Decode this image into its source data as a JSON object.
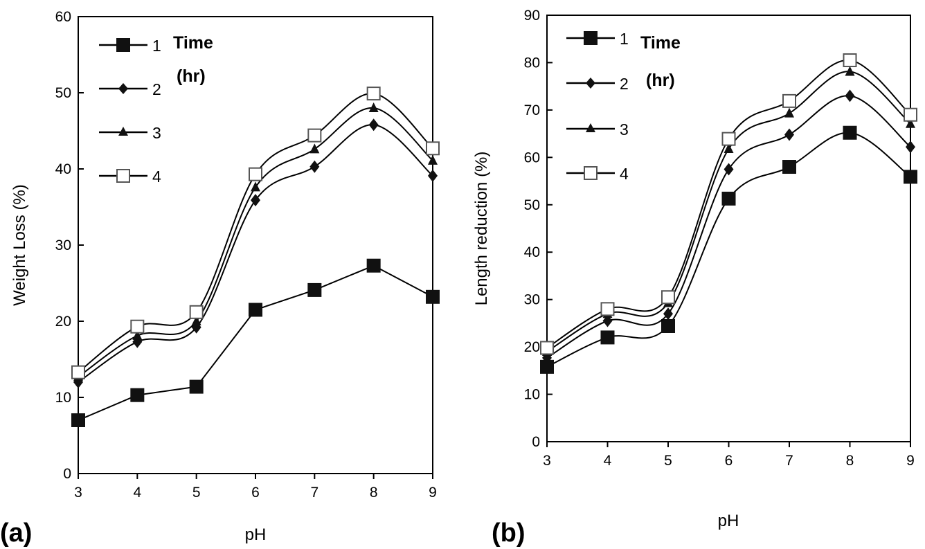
{
  "chart_data": [
    {
      "type": "line",
      "panel_label": "(a)",
      "xlabel": "pH",
      "ylabel": "Weight Loss (%)",
      "x": [
        3,
        4,
        5,
        6,
        7,
        8,
        9
      ],
      "x_ticks": [
        "3",
        "4",
        "5",
        "6",
        "7",
        "8",
        "9"
      ],
      "xlim": [
        3,
        9
      ],
      "ylim": [
        0,
        60
      ],
      "y_ticks": [
        "0",
        "10",
        "20",
        "30",
        "40",
        "50",
        "60"
      ],
      "grid": false,
      "legend_placement": "top-left",
      "legend_title": [
        "Time",
        "(hr)"
      ],
      "series": [
        {
          "name": "1",
          "marker": "filled-square",
          "smooth": false,
          "values": [
            7.0,
            10.3,
            11.4,
            21.5,
            24.1,
            27.3,
            23.2
          ]
        },
        {
          "name": "2",
          "marker": "filled-diamond",
          "smooth": true,
          "values": [
            12.0,
            17.3,
            19.2,
            35.9,
            40.3,
            45.8,
            39.1
          ]
        },
        {
          "name": "3",
          "marker": "filled-triangle",
          "smooth": true,
          "values": [
            12.7,
            18.1,
            20.0,
            37.6,
            42.6,
            48.0,
            41.1
          ]
        },
        {
          "name": "4",
          "marker": "open-square",
          "smooth": true,
          "values": [
            13.3,
            19.3,
            21.2,
            39.3,
            44.4,
            49.9,
            42.7
          ]
        }
      ]
    },
    {
      "type": "line",
      "panel_label": "(b)",
      "xlabel": "pH",
      "ylabel": "Length reduction (%)",
      "x": [
        3,
        4,
        5,
        6,
        7,
        8,
        9
      ],
      "x_ticks": [
        "3",
        "4",
        "5",
        "6",
        "7",
        "8",
        "9"
      ],
      "xlim": [
        3,
        9
      ],
      "ylim": [
        0,
        90
      ],
      "y_ticks": [
        "0",
        "10",
        "20",
        "30",
        "40",
        "50",
        "60",
        "70",
        "80",
        "90"
      ],
      "grid": false,
      "legend_placement": "top-left",
      "legend_title": [
        "Time",
        "(hr)"
      ],
      "series": [
        {
          "name": "1",
          "marker": "filled-square",
          "smooth": true,
          "values": [
            15.8,
            22.0,
            24.4,
            51.3,
            58.0,
            65.2,
            55.9
          ]
        },
        {
          "name": "2",
          "marker": "filled-diamond",
          "smooth": true,
          "values": [
            17.7,
            25.5,
            27.0,
            57.5,
            64.8,
            73.0,
            62.2
          ]
        },
        {
          "name": "3",
          "marker": "filled-triangle",
          "smooth": true,
          "values": [
            19.0,
            27.0,
            29.3,
            61.8,
            69.3,
            78.1,
            67.1
          ]
        },
        {
          "name": "4",
          "marker": "open-square",
          "smooth": true,
          "values": [
            19.8,
            28.0,
            30.5,
            63.9,
            71.9,
            80.5,
            69.0
          ]
        }
      ]
    }
  ]
}
